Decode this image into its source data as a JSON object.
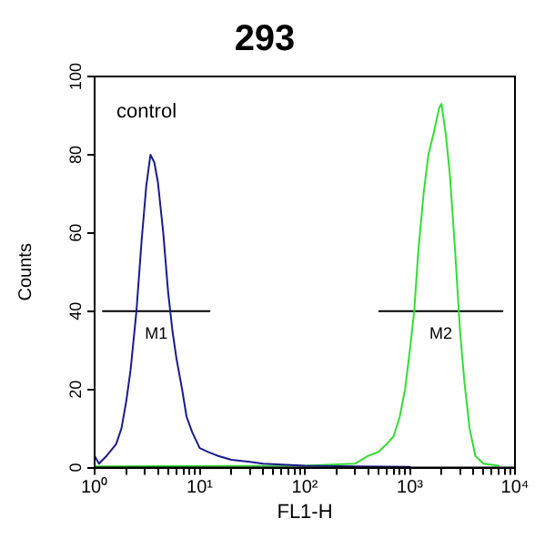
{
  "chart_data": {
    "type": "line",
    "title": "293",
    "xlabel": "FL1-H",
    "ylabel": "Counts",
    "log": "x",
    "grid": false,
    "legend": false,
    "marker": "none",
    "xlim": [
      1,
      10000
    ],
    "ylim": [
      0,
      100
    ],
    "xticks": [
      {
        "value": 1,
        "label": "10⁰"
      },
      {
        "value": 2,
        "label": null
      },
      {
        "value": 3,
        "label": null
      },
      {
        "value": 4,
        "label": null
      },
      {
        "value": 5,
        "label": null
      },
      {
        "value": 6,
        "label": null
      },
      {
        "value": 7,
        "label": null
      },
      {
        "value": 8,
        "label": null
      },
      {
        "value": 9,
        "label": null
      },
      {
        "value": 10,
        "label": "10¹"
      },
      {
        "value": 20,
        "label": null
      },
      {
        "value": 30,
        "label": null
      },
      {
        "value": 40,
        "label": null
      },
      {
        "value": 50,
        "label": null
      },
      {
        "value": 60,
        "label": null
      },
      {
        "value": 70,
        "label": null
      },
      {
        "value": 80,
        "label": null
      },
      {
        "value": 90,
        "label": null
      },
      {
        "value": 100,
        "label": "10²"
      },
      {
        "value": 200,
        "label": null
      },
      {
        "value": 300,
        "label": null
      },
      {
        "value": 400,
        "label": null
      },
      {
        "value": 500,
        "label": null
      },
      {
        "value": 600,
        "label": null
      },
      {
        "value": 700,
        "label": null
      },
      {
        "value": 800,
        "label": null
      },
      {
        "value": 900,
        "label": null
      },
      {
        "value": 1000,
        "label": "10³"
      },
      {
        "value": 2000,
        "label": null
      },
      {
        "value": 3000,
        "label": null
      },
      {
        "value": 4000,
        "label": null
      },
      {
        "value": 5000,
        "label": null
      },
      {
        "value": 6000,
        "label": null
      },
      {
        "value": 7000,
        "label": null
      },
      {
        "value": 8000,
        "label": null
      },
      {
        "value": 9000,
        "label": null
      },
      {
        "value": 10000,
        "label": "10⁴"
      }
    ],
    "yticks": [
      0,
      20,
      40,
      60,
      80,
      100
    ],
    "series": [
      {
        "color": "#1a1a8c",
        "x": [
          1,
          1.1,
          1.3,
          1.6,
          1.8,
          2,
          2.2,
          2.5,
          2.8,
          3.1,
          3.4,
          3.7,
          4,
          4.5,
          5,
          5.5,
          6,
          6.8,
          7.5,
          8.5,
          10,
          12,
          15,
          20,
          30,
          40,
          60,
          100,
          300,
          1000
        ],
        "values": [
          3,
          1,
          3,
          6,
          10,
          17,
          25,
          40,
          58,
          72,
          80,
          78,
          73,
          60,
          45,
          35,
          28,
          20,
          13,
          9,
          5,
          4,
          3,
          2,
          1.5,
          1,
          0.8,
          0.5,
          0.3,
          0.2
        ]
      },
      {
        "color": "#33dd33",
        "x": [
          1,
          100,
          300,
          400,
          500,
          600,
          700,
          800,
          900,
          1000,
          1100,
          1200,
          1350,
          1500,
          1700,
          1900,
          2000,
          2200,
          2400,
          2700,
          3000,
          3300,
          3700,
          4200,
          5000,
          7000
        ],
        "values": [
          0.3,
          0.5,
          1,
          3,
          4,
          6,
          8,
          13,
          20,
          30,
          40,
          55,
          70,
          80,
          86,
          92,
          93,
          85,
          75,
          55,
          35,
          22,
          10,
          3,
          1,
          0.5
        ]
      },
      {
        "name": "M1",
        "color": "#000000",
        "x": [
          1.2,
          12.4
        ],
        "values": [
          40,
          40
        ]
      },
      {
        "name": "M2",
        "color": "#000000",
        "x": [
          510,
          7600
        ],
        "values": [
          40,
          40
        ]
      }
    ],
    "annotations": [
      "control"
    ]
  }
}
